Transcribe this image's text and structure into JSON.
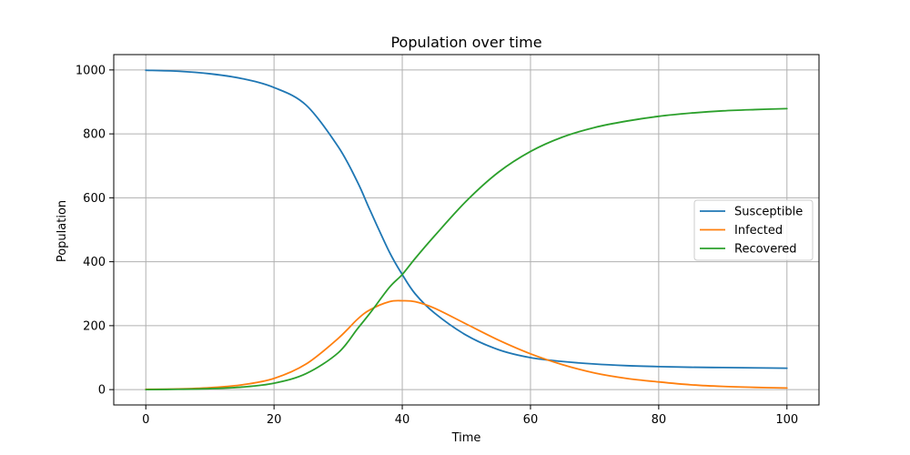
{
  "chart_data": {
    "type": "line",
    "title": "Population over time",
    "xlabel": "Time",
    "ylabel": "Population",
    "xlim": [
      -5,
      105
    ],
    "ylim": [
      -48,
      1048
    ],
    "xticks": [
      0,
      20,
      40,
      60,
      80,
      100
    ],
    "yticks": [
      0,
      200,
      400,
      600,
      800,
      1000
    ],
    "grid": true,
    "legend_position": "center-right",
    "x": [
      0,
      5,
      10,
      15,
      20,
      25,
      30,
      33,
      35,
      38,
      40,
      42,
      45,
      50,
      55,
      60,
      65,
      70,
      75,
      80,
      85,
      90,
      95,
      100
    ],
    "series": [
      {
        "name": "Susceptible",
        "color": "#1f77b4",
        "values": [
          999,
          996,
          988,
          973,
          945,
          890,
          760,
          650,
          560,
          430,
          360,
          300,
          240,
          170,
          125,
          100,
          88,
          80,
          75,
          72,
          70,
          69,
          68,
          67
        ]
      },
      {
        "name": "Infected",
        "color": "#ff7f0e",
        "values": [
          1,
          2,
          6,
          15,
          35,
          80,
          160,
          220,
          250,
          275,
          278,
          275,
          255,
          205,
          155,
          112,
          78,
          52,
          35,
          24,
          15,
          10,
          7,
          5
        ]
      },
      {
        "name": "Recovered",
        "color": "#2ca02c",
        "values": [
          0,
          1,
          3,
          8,
          20,
          50,
          115,
          190,
          240,
          320,
          360,
          410,
          480,
          590,
          680,
          745,
          790,
          820,
          840,
          855,
          865,
          872,
          876,
          879
        ]
      }
    ]
  }
}
